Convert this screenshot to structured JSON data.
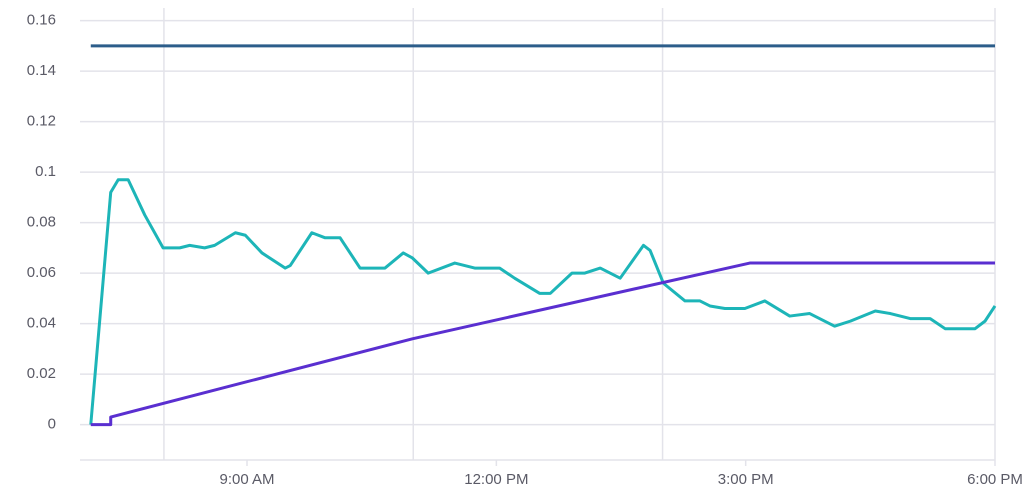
{
  "chart_data": {
    "type": "line",
    "xlim": [
      7,
      18
    ],
    "ylim": [
      -0.014,
      0.165
    ],
    "yticks": [
      0,
      0.02,
      0.04,
      0.06,
      0.08,
      0.1,
      0.12,
      0.14,
      0.16
    ],
    "xticks": [
      {
        "value": 9,
        "label": "9:00 AM"
      },
      {
        "value": 12,
        "label": "12:00 PM"
      },
      {
        "value": 15,
        "label": "3:00 PM"
      },
      {
        "value": 18,
        "label": "6:00 PM"
      }
    ],
    "xgrid": [
      8,
      11,
      14
    ],
    "grid": true,
    "series": [
      {
        "color": "#2c5d8a",
        "x": [
          7.12,
          18
        ],
        "values": [
          0.15,
          0.15
        ]
      },
      {
        "color": "#1db5b8",
        "x": [
          7.12,
          7.36,
          7.45,
          7.57,
          7.77,
          7.99,
          8.19,
          8.31,
          8.49,
          8.61,
          8.86,
          8.98,
          9.18,
          9.46,
          9.52,
          9.78,
          9.94,
          10.12,
          10.36,
          10.66,
          10.88,
          10.99,
          11.18,
          11.5,
          11.74,
          12.04,
          12.22,
          12.52,
          12.65,
          12.91,
          13.06,
          13.25,
          13.49,
          13.77,
          13.85,
          14.01,
          14.27,
          14.45,
          14.57,
          14.75,
          14.99,
          15.23,
          15.53,
          15.77,
          16.07,
          16.26,
          16.56,
          16.74,
          16.98,
          17.22,
          17.4,
          17.76,
          17.88,
          18
        ],
        "values": [
          0,
          0.092,
          0.097,
          0.097,
          0.083,
          0.07,
          0.07,
          0.071,
          0.07,
          0.071,
          0.076,
          0.075,
          0.068,
          0.062,
          0.063,
          0.076,
          0.074,
          0.074,
          0.062,
          0.062,
          0.068,
          0.066,
          0.06,
          0.064,
          0.062,
          0.062,
          0.058,
          0.052,
          0.052,
          0.06,
          0.06,
          0.062,
          0.058,
          0.071,
          0.069,
          0.056,
          0.049,
          0.049,
          0.047,
          0.046,
          0.046,
          0.049,
          0.043,
          0.044,
          0.039,
          0.041,
          0.045,
          0.044,
          0.042,
          0.042,
          0.038,
          0.038,
          0.041,
          0.047
        ]
      },
      {
        "color": "#5a2fd0",
        "x": [
          7.12,
          7.36,
          7.36,
          10.99,
          15.05,
          18
        ],
        "values": [
          0,
          0,
          0.003,
          0.034,
          0.064,
          0.064
        ]
      }
    ]
  }
}
